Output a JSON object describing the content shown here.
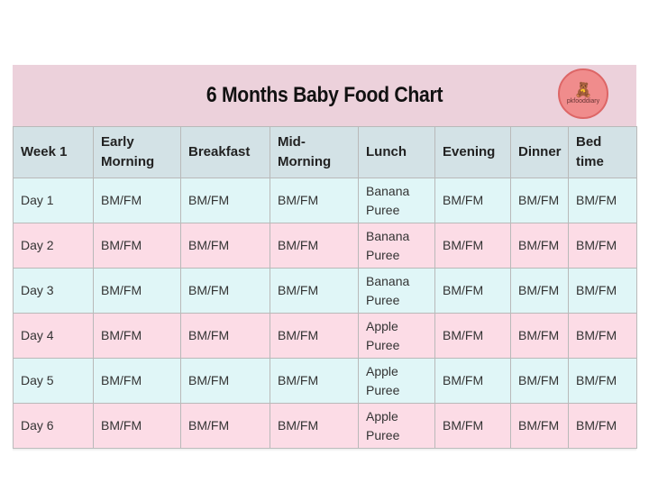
{
  "title": "6 Months Baby Food Chart",
  "logo": {
    "text": "pkfooddiary",
    "icon": "teddy-bear-icon",
    "color": "#f08c8c"
  },
  "colors": {
    "title_band": "#ecd1db",
    "header": "#d3e2e6",
    "row_cyan": "#e0f6f7",
    "row_pink": "#fcdce6"
  },
  "columns": [
    "Week 1",
    "Early Morning",
    "Breakfast",
    "Mid-Morning",
    "Lunch",
    "Evening",
    "Dinner",
    "Bed time"
  ],
  "rows": [
    [
      "Day 1",
      "BM/FM",
      "BM/FM",
      "BM/FM",
      "Banana Puree",
      "BM/FM",
      "BM/FM",
      "BM/FM"
    ],
    [
      "Day 2",
      "BM/FM",
      "BM/FM",
      "BM/FM",
      "Banana Puree",
      "BM/FM",
      "BM/FM",
      "BM/FM"
    ],
    [
      "Day 3",
      "BM/FM",
      "BM/FM",
      "BM/FM",
      "Banana Puree",
      "BM/FM",
      "BM/FM",
      "BM/FM"
    ],
    [
      "Day 4",
      "BM/FM",
      "BM/FM",
      "BM/FM",
      "Apple Puree",
      "BM/FM",
      "BM/FM",
      "BM/FM"
    ],
    [
      "Day 5",
      "BM/FM",
      "BM/FM",
      "BM/FM",
      "Apple Puree",
      "BM/FM",
      "BM/FM",
      "BM/FM"
    ],
    [
      "Day 6",
      "BM/FM",
      "BM/FM",
      "BM/FM",
      "Apple Puree",
      "BM/FM",
      "BM/FM",
      "BM/FM"
    ]
  ]
}
